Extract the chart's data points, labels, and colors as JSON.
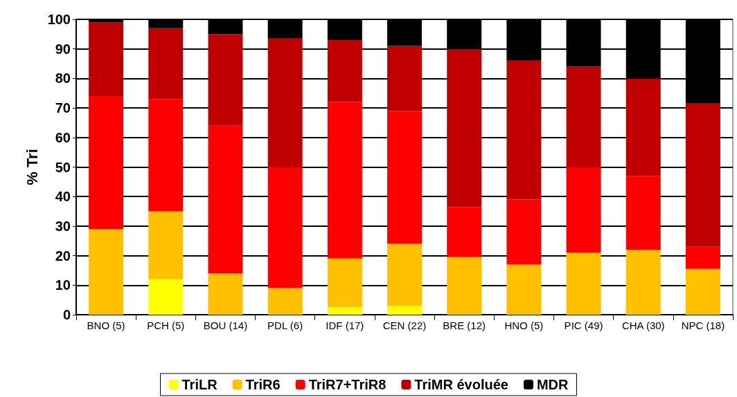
{
  "chart_data": {
    "type": "bar",
    "stacked": true,
    "ylabel": "% Tri",
    "categories": [
      "BNO (5)",
      "PCH (5)",
      "BOU (14)",
      "PDL (6)",
      "IDF (17)",
      "CEN (22)",
      "BRE (12)",
      "HNO (5)",
      "PIC (49)",
      "CHA (30)",
      "NPC (18)"
    ],
    "series": [
      {
        "name": "TriLR",
        "color": "#ffff00",
        "values": [
          0,
          12,
          0,
          0,
          2.5,
          3,
          0,
          0,
          0,
          0,
          0
        ]
      },
      {
        "name": "TriR6",
        "color": "#ffc000",
        "values": [
          29,
          23,
          14,
          9,
          16.5,
          21,
          19.5,
          17,
          21,
          22,
          15.5
        ]
      },
      {
        "name": "TriR7+TriR8",
        "color": "#ff0000",
        "values": [
          45,
          38,
          50,
          41,
          53,
          45,
          17,
          22,
          29,
          25,
          7.5
        ]
      },
      {
        "name": "TriMR évoluée",
        "color": "#c00000",
        "values": [
          25,
          24,
          31,
          43.5,
          21,
          22,
          53.5,
          47,
          34,
          33,
          48.5
        ]
      },
      {
        "name": "MDR",
        "color": "#000000",
        "values": [
          1,
          3,
          5,
          6.5,
          7,
          9,
          10,
          14,
          16,
          20,
          28.5
        ]
      }
    ],
    "ylim": [
      0,
      100
    ],
    "yticks": [
      0,
      10,
      20,
      30,
      40,
      50,
      60,
      70,
      80,
      90,
      100
    ],
    "grid": "y",
    "legend": "bottom"
  }
}
